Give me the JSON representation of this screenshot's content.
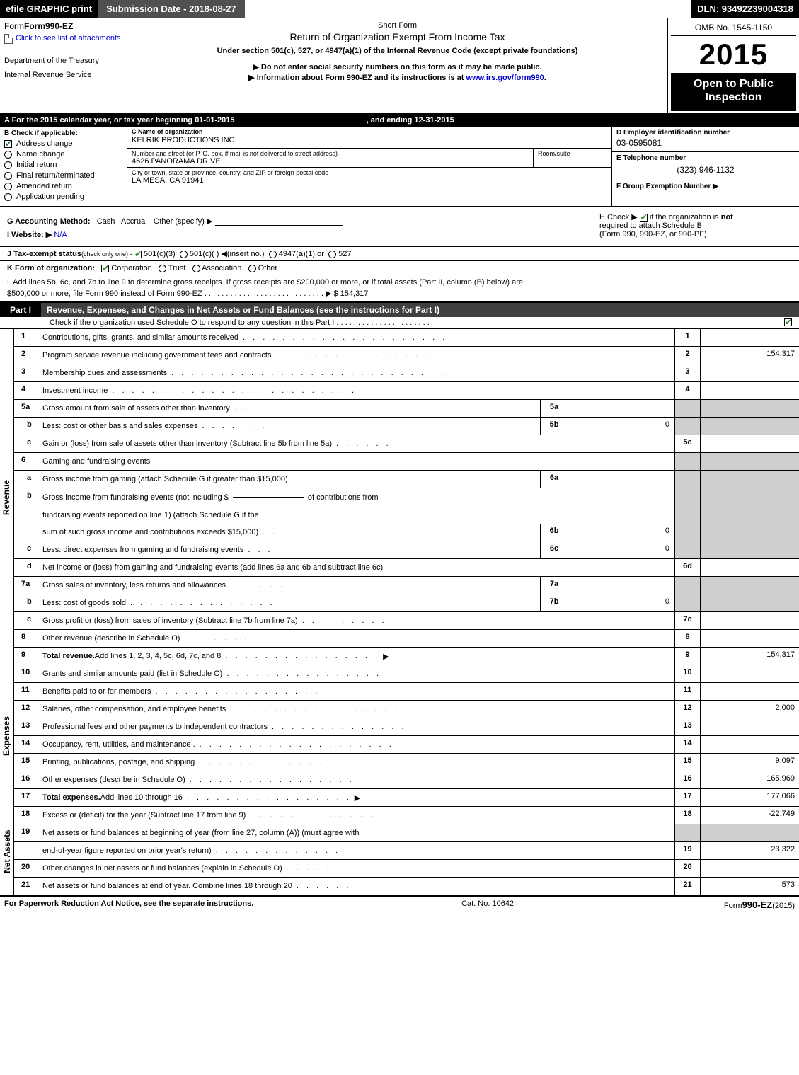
{
  "topbar": {
    "efile": "efile GRAPHIC print",
    "submission": "Submission Date - 2018-08-27",
    "dln": "DLN: 93492239004318"
  },
  "header": {
    "form_name": "Form990-EZ",
    "attach_link": "Click to see list of attachments",
    "dept1": "Department of the Treasury",
    "dept2": "Internal Revenue Service",
    "short_form": "Short Form",
    "title": "Return of Organization Exempt From Income Tax",
    "under": "Under section 501(c), 527, or 4947(a)(1) of the Internal Revenue Code (except private foundations)",
    "warn1": "▶ Do not enter social security numbers on this form as it may be made public.",
    "warn2_pre": "▶ Information about Form 990-EZ and its instructions is at ",
    "warn2_link": "www.irs.gov/form990",
    "omb": "OMB No. 1545-1150",
    "year": "2015",
    "open_pub1": "Open to Public",
    "open_pub2": "Inspection"
  },
  "row_a": {
    "text_pre": "A  For the 2015 calendar year, or tax year beginning 01-01-2015",
    "text_post": ", and ending 12-31-2015"
  },
  "section_b": {
    "title": "B  Check if applicable:",
    "items": [
      {
        "label": "Address change",
        "checked": true,
        "type": "box"
      },
      {
        "label": "Name change",
        "checked": false,
        "type": "radio"
      },
      {
        "label": "Initial return",
        "checked": false,
        "type": "radio"
      },
      {
        "label": "Final return/terminated",
        "checked": false,
        "type": "radio"
      },
      {
        "label": "Amended return",
        "checked": false,
        "type": "radio"
      },
      {
        "label": "Application pending",
        "checked": false,
        "type": "radio"
      }
    ]
  },
  "section_c": {
    "name_lbl": "C Name of organization",
    "name_val": "KELRIK PRODUCTIONS INC",
    "addr_lbl": "Number and street (or P. O. box, if mail is not delivered to street address)",
    "addr_val": "4626 PANORAMA DRIVE",
    "room_lbl": "Room/suite",
    "city_lbl": "City or town, state or province, country, and ZIP or foreign postal code",
    "city_val": "LA MESA, CA  91941"
  },
  "section_d": {
    "lbl": "D Employer identification number",
    "val": "03-0595081"
  },
  "section_e": {
    "lbl": "E Telephone number",
    "val": "(323) 946-1132"
  },
  "section_f": {
    "lbl": "F Group Exemption Number   ▶"
  },
  "section_g": {
    "pre": "G Accounting Method:",
    "cash": "Cash",
    "accrual": "Accrual",
    "other": "Other (specify) ▶"
  },
  "section_h": {
    "text_pre": "H  Check ▶ ",
    "text_post": " if the organization is ",
    "not": "not",
    "line2": "required to attach Schedule B",
    "line3": "(Form 990, 990-EZ, or 990-PF)."
  },
  "section_i": {
    "lbl": "I Website: ▶",
    "val": "N/A"
  },
  "section_j": {
    "pre": "J Tax-exempt status",
    "small": "(check only one) - ",
    "opt1": "501(c)(3)",
    "opt2": "501(c)(  ) ◀(insert no.)",
    "opt3": "4947(a)(1) or",
    "opt4": "527"
  },
  "section_k": {
    "pre": "K Form of organization:",
    "opts": [
      "Corporation",
      "Trust",
      "Association",
      "Other"
    ]
  },
  "section_l": {
    "text1": "L Add lines 5b, 6c, and 7b to line 9 to determine gross receipts. If gross receipts are $200,000 or more, or if total assets (Part II, column (B) below) are",
    "text2": "$500,000 or more, file Form 990 instead of Form 990-EZ",
    "dots": ". . . . . . . . . . . . . . . . . . . . . . . . . . . . ▶",
    "amount": "$ 154,317"
  },
  "part1": {
    "tag": "Part I",
    "title": "Revenue, Expenses, and Changes in Net Assets or Fund Balances (see the instructions for Part I)",
    "sub": "Check if the organization used Schedule O to respond to any question in this Part I",
    "sub_dots": ". . . . . . . . . . . . . . . . . . . . . .",
    "sub_checked": true
  },
  "revenue_lines": [
    {
      "n": "1",
      "d": "Contributions, gifts, grants, and similar amounts received",
      "dots": ". . . . . . . . . . . . . . . . . . . . .",
      "rn": "1",
      "rv": ""
    },
    {
      "n": "2",
      "d": "Program service revenue including government fees and contracts",
      "dots": ". . . . . . . . . . . . . . . .",
      "rn": "2",
      "rv": "154,317"
    },
    {
      "n": "3",
      "d": "Membership dues and assessments",
      "dots": ". . . . . . . . . . . . . . . . . . . . . . . . . . . .",
      "rn": "3",
      "rv": ""
    },
    {
      "n": "4",
      "d": "Investment income",
      "dots": ". . . . . . . . . . . . . . . . . . . . . . . . .",
      "rn": "4",
      "rv": ""
    }
  ],
  "line5a": {
    "n": "5a",
    "d": "Gross amount from sale of assets other than inventory",
    "dots": ". . . . .",
    "mn": "5a",
    "mv": ""
  },
  "line5b": {
    "n": "b",
    "d": "Less: cost or other basis and sales expenses",
    "dots": ". . . . . . .",
    "mn": "5b",
    "mv": "0"
  },
  "line5c": {
    "n": "c",
    "d": "Gain or (loss) from sale of assets other than inventory (Subtract line 5b from line 5a)",
    "dots": ". . . . . .",
    "rn": "5c",
    "rv": ""
  },
  "line6": {
    "n": "6",
    "d": "Gaming and fundraising events"
  },
  "line6a": {
    "n": "a",
    "d": "Gross income from gaming (attach Schedule G if greater than $15,000)",
    "mn": "6a",
    "mv": ""
  },
  "line6b": {
    "n": "b",
    "d1": "Gross income from fundraising events (not including $",
    "d2": "of contributions from",
    "d3": "fundraising events reported on line 1) (attach Schedule G if the",
    "d4": "sum of such gross income and contributions exceeds $15,000)",
    "dots": ". .",
    "mn": "6b",
    "mv": "0"
  },
  "line6c": {
    "n": "c",
    "d": "Less: direct expenses from gaming and fundraising events",
    "dots": ". . .",
    "mn": "6c",
    "mv": "0"
  },
  "line6d": {
    "n": "d",
    "d": "Net income or (loss) from gaming and fundraising events (add lines 6a and 6b and subtract line 6c)",
    "rn": "6d",
    "rv": ""
  },
  "line7a": {
    "n": "7a",
    "d": "Gross sales of inventory, less returns and allowances",
    "dots": ". . . . . .",
    "mn": "7a",
    "mv": ""
  },
  "line7b": {
    "n": "b",
    "d": "Less: cost of goods sold",
    "dots": ". . . . . . . . . . . . . . .",
    "mn": "7b",
    "mv": "0"
  },
  "line7c": {
    "n": "c",
    "d": "Gross profit or (loss) from sales of inventory (Subtract line 7b from line 7a)",
    "dots": ". . . . . . . . .",
    "rn": "7c",
    "rv": ""
  },
  "line8": {
    "n": "8",
    "d": "Other revenue (describe in Schedule O)",
    "dots": ". . . . . . . . . .",
    "rn": "8",
    "rv": ""
  },
  "line9": {
    "n": "9",
    "d": "Total revenue. ",
    "d2": "Add lines 1, 2, 3, 4, 5c, 6d, 7c, and 8",
    "dots": ". . . . . . . . . . . . . . . .",
    "arrow": "▶",
    "rn": "9",
    "rv": "154,317"
  },
  "expense_lines": [
    {
      "n": "10",
      "d": "Grants and similar amounts paid (list in Schedule O)",
      "dots": ". . . . . . . . . . . . . . . .",
      "rn": "10",
      "rv": ""
    },
    {
      "n": "11",
      "d": "Benefits paid to or for members",
      "dots": ". . . . . . . . . . . . . . . . .",
      "rn": "11",
      "rv": ""
    },
    {
      "n": "12",
      "d": "Salaries, other compensation, and employee benefits .",
      "dots": ". . . . . . . . . . . . . . . . .",
      "rn": "12",
      "rv": "2,000"
    },
    {
      "n": "13",
      "d": "Professional fees and other payments to independent contractors",
      "dots": ". . . . . . . . . . . . . .",
      "rn": "13",
      "rv": ""
    },
    {
      "n": "14",
      "d": "Occupancy, rent, utilities, and maintenance .",
      "dots": ". . . . . . . . . . . . . . . . . . . .",
      "rn": "14",
      "rv": ""
    },
    {
      "n": "15",
      "d": "Printing, publications, postage, and shipping",
      "dots": ". . . . . . . . . . . . . . . . .",
      "rn": "15",
      "rv": "9,097"
    },
    {
      "n": "16",
      "d": "Other expenses (describe in Schedule O)",
      "dots": ". . . . . . . . . . . . . . . . .",
      "rn": "16",
      "rv": "165,969"
    },
    {
      "n": "17",
      "d": "Total expenses. ",
      "d2": "Add lines 10 through 16",
      "dots": ". . . . . . . . . . . . . . . . .",
      "arrow": "▶",
      "rn": "17",
      "rv": "177,066"
    }
  ],
  "netassets_lines": [
    {
      "n": "18",
      "d": "Excess or (deficit) for the year (Subtract line 17 from line 9)",
      "dots": ". . . . . . . . . . . . .",
      "rn": "18",
      "rv": "-22,749"
    },
    {
      "n": "19",
      "d": "Net assets or fund balances at beginning of year (from line 27, column (A)) (must agree with",
      "rn": "",
      "rv": "",
      "shade": true
    },
    {
      "n": "",
      "d": "end-of-year figure reported on prior year's return)",
      "dots": ". . . . . . . . . . . . .",
      "rn": "19",
      "rv": "23,322"
    },
    {
      "n": "20",
      "d": "Other changes in net assets or fund balances (explain in Schedule O)",
      "dots": ". . . . . . . . .",
      "rn": "20",
      "rv": ""
    },
    {
      "n": "21",
      "d": "Net assets or fund balances at end of year. Combine lines 18 through 20",
      "dots": ". . . . . .",
      "rn": "21",
      "rv": "573"
    }
  ],
  "footer": {
    "left": "For Paperwork Reduction Act Notice, see the separate instructions.",
    "mid": "Cat. No. 10642I",
    "right_pre": "Form",
    "right_big": "990-EZ",
    "right_post": "(2015)"
  },
  "section_labels": {
    "revenue": "Revenue",
    "expenses": "Expenses",
    "netassets": "Net Assets"
  }
}
